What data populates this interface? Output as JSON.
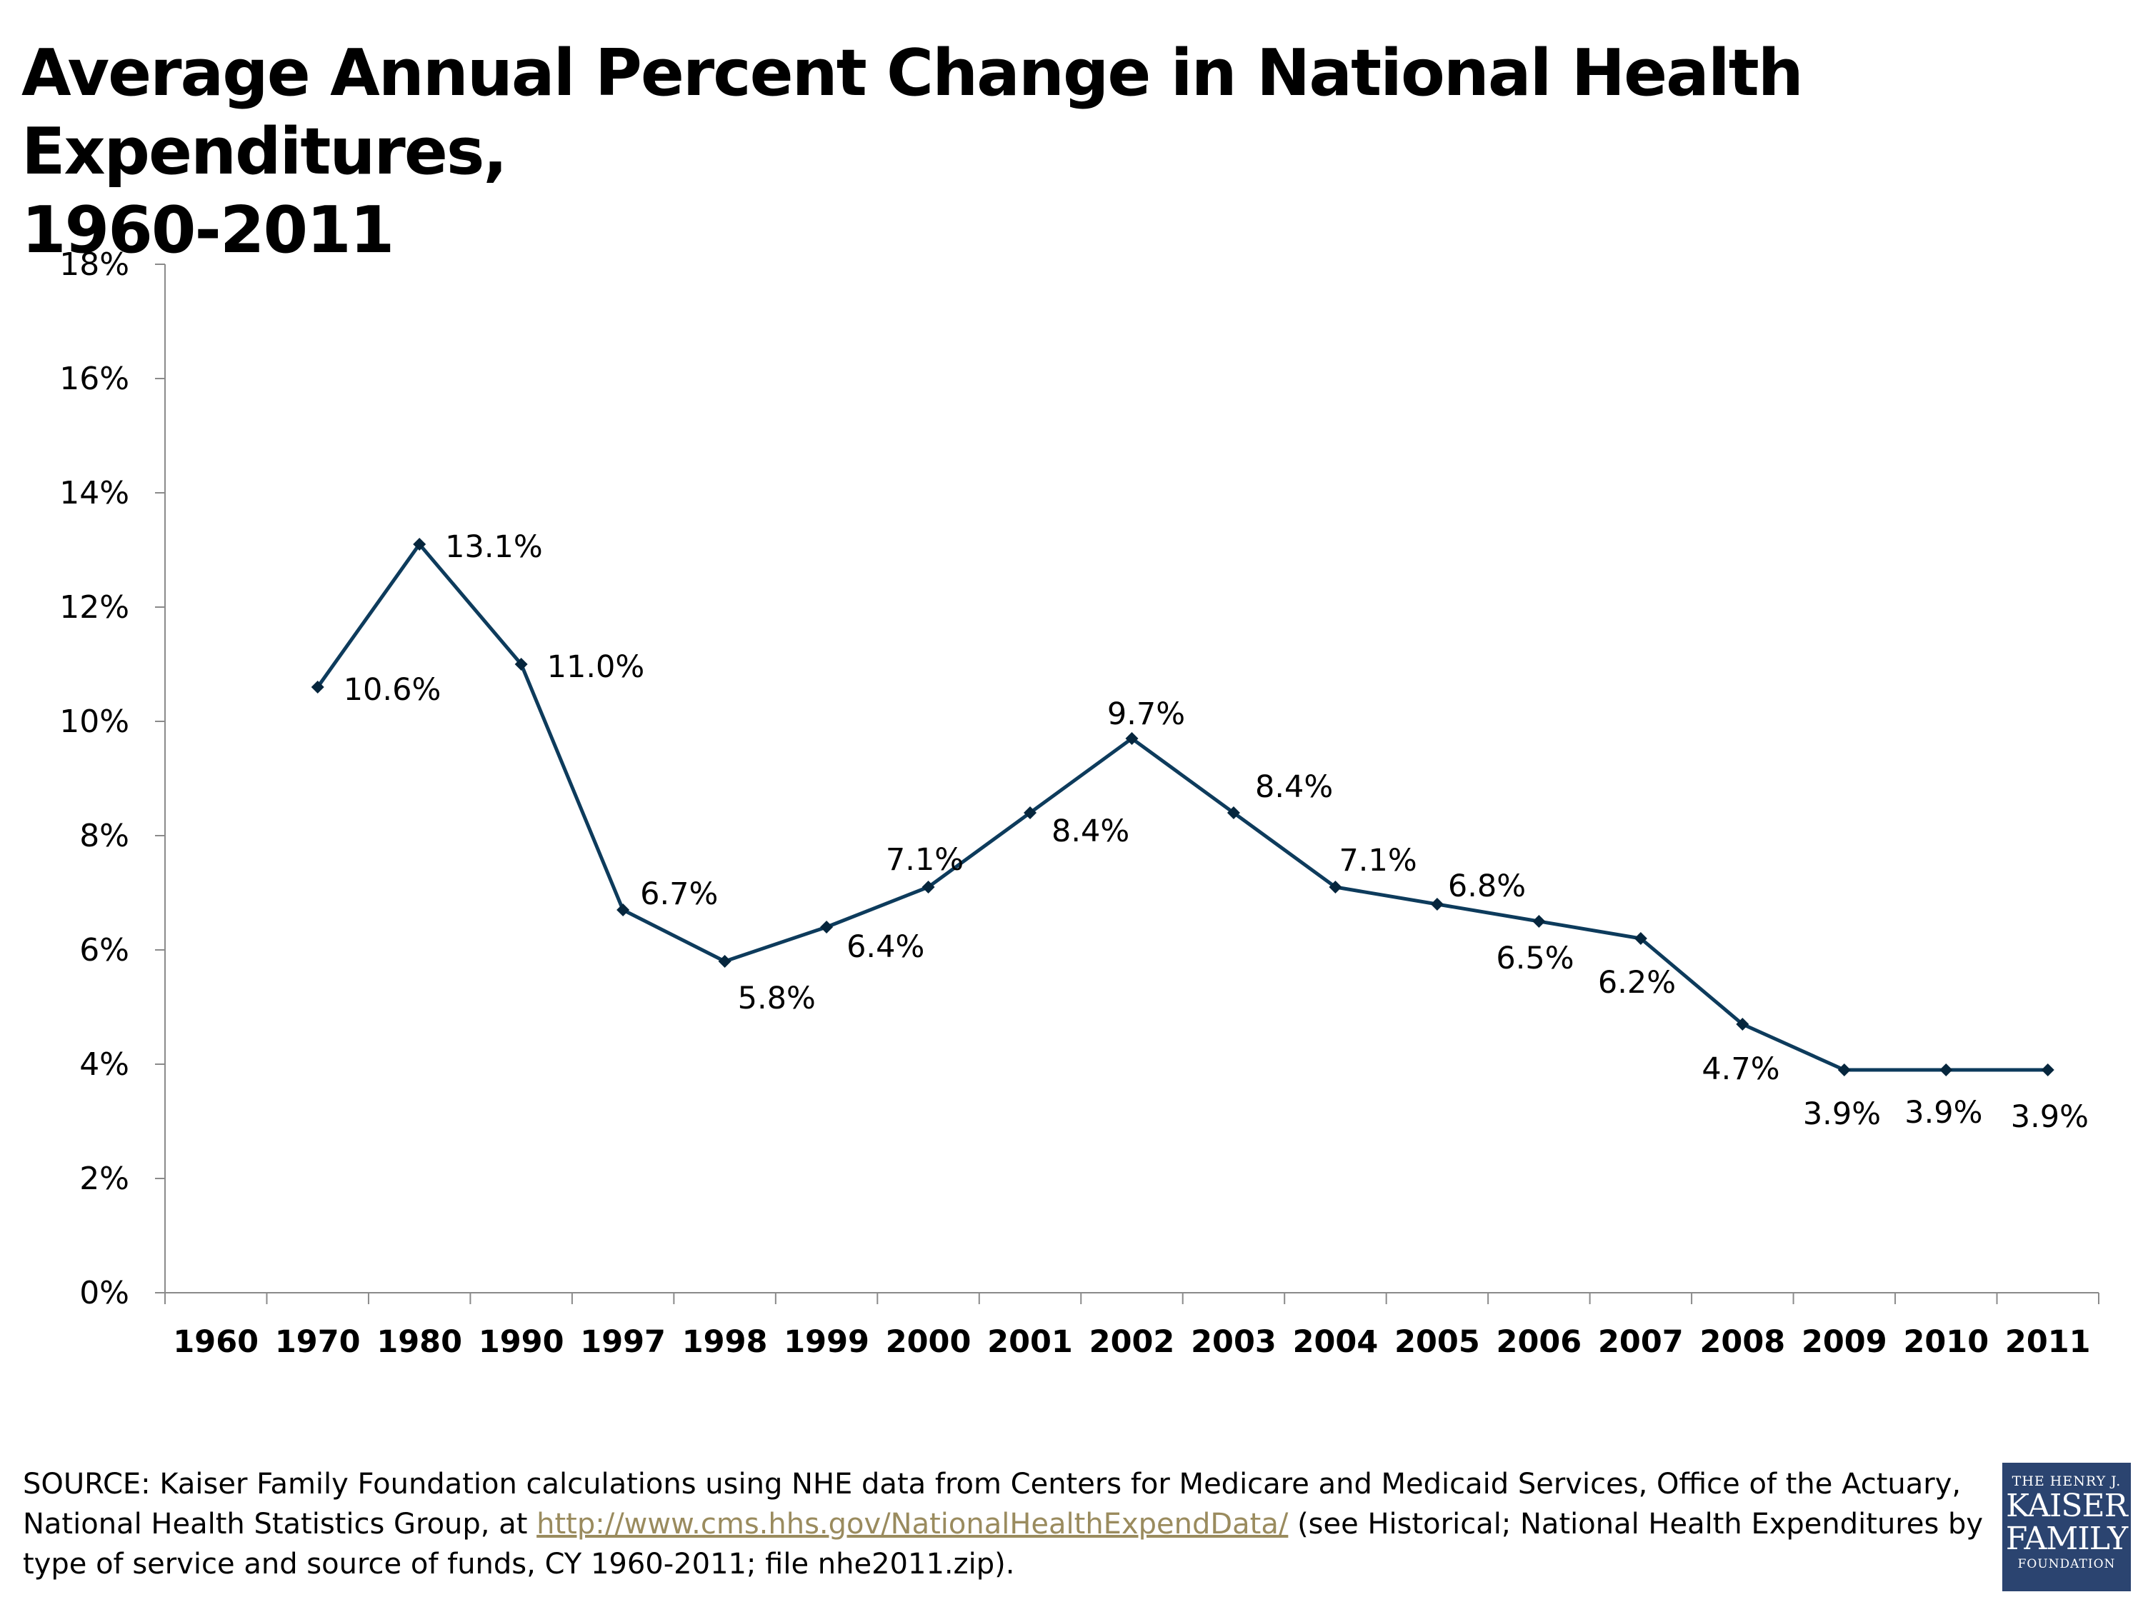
{
  "title": {
    "line1": "Average Annual Percent Change in National Health Expenditures,",
    "line2": "1960-2011"
  },
  "chart_data": {
    "type": "line",
    "categories": [
      "1960",
      "1970",
      "1980",
      "1990",
      "1997",
      "1998",
      "1999",
      "2000",
      "2001",
      "2002",
      "2003",
      "2004",
      "2005",
      "2006",
      "2007",
      "2008",
      "2009",
      "2010",
      "2011"
    ],
    "values": [
      null,
      10.6,
      13.1,
      11.0,
      6.7,
      5.8,
      6.4,
      7.1,
      8.4,
      9.7,
      8.4,
      7.1,
      6.8,
      6.5,
      6.2,
      4.7,
      3.9,
      3.9,
      3.9
    ],
    "labels": [
      "",
      "10.6%",
      "13.1%",
      "11.0%",
      "6.7%",
      "5.8%",
      "6.4%",
      "7.1%",
      "8.4%",
      "9.7%",
      "8.4%",
      "7.1%",
      "6.8%",
      "6.5%",
      "6.2%",
      "4.7%",
      "3.9%",
      "3.9%",
      "3.9%"
    ],
    "yticks": [
      "0%",
      "2%",
      "4%",
      "6%",
      "8%",
      "10%",
      "12%",
      "14%",
      "16%",
      "18%"
    ],
    "ylim": [
      0,
      18
    ],
    "line_color": "#0d3b5c",
    "grid": false,
    "legend": "none"
  },
  "source": {
    "before": "SOURCE: Kaiser Family Foundation calculations using NHE data from Centers for Medicare and Medicaid Services, Office of the Actuary, National Health Statistics Group, at ",
    "link": "http://www.cms.hhs.gov/NationalHealthExpendData/",
    "after": " (see Historical; National Health Expenditures by type of service and source of funds, CY 1960-2011; file nhe2011.zip)."
  },
  "logo": {
    "line1": "THE HENRY J.",
    "line2": "KAISER",
    "line3": "FAMILY",
    "line4": "FOUNDATION"
  }
}
